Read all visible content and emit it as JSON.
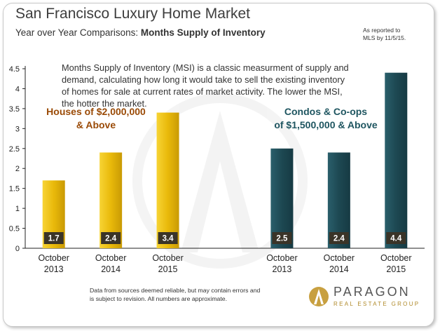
{
  "header": {
    "title": "San Francisco Luxury Home Market",
    "subtitle_prefix": "Year over Year Comparisons:",
    "subtitle_bold": "Months Supply of Inventory",
    "note_line1": "As reported to",
    "note_line2": "MLS by 11/5/15."
  },
  "description": "Months Supply of Inventory (MSI) is a classic measurment of supply and demand, calculating how long it would take to sell the existing inventory of homes for sale at current rates of market activity. The lower the MSI, the hotter the market.",
  "groups": {
    "houses_line1": "Houses of $2,000,000",
    "houses_line2": "& Above",
    "condos_line1": "Condos & Co-ops",
    "condos_line2": "of $1,500,000 & Above"
  },
  "footer": {
    "disclaimer_line1": "Data from sources deemed reliable, but may contain errors and",
    "disclaimer_line2": "is subject to revision. All numbers are approximate.",
    "logo_name": "PARAGON",
    "logo_sub": "REAL ESTATE GROUP"
  },
  "colors": {
    "houses_bar": "#eab90a",
    "condos_bar": "#1f4a55",
    "houses_label": "#9a4a06",
    "condos_label": "#1e5560",
    "value_box": "#3a3428"
  },
  "chart_data": {
    "type": "bar",
    "title": "Months Supply of Inventory",
    "ylim": [
      0,
      4.5
    ],
    "yticks": [
      "0",
      "0.5",
      "1",
      "1.5",
      "2",
      "2.5",
      "3",
      "3.5",
      "4",
      "4.5"
    ],
    "grid": false,
    "categories": [
      [
        "October",
        "2013"
      ],
      [
        "October",
        "2014"
      ],
      [
        "October",
        "2015"
      ],
      [
        "",
        ""
      ],
      [
        "October",
        "2013"
      ],
      [
        "October",
        "2014"
      ],
      [
        "October",
        "2015"
      ]
    ],
    "series": [
      {
        "name": "Houses of $2,000,000 & Above",
        "values": [
          1.7,
          2.4,
          3.4,
          null,
          null,
          null,
          null
        ],
        "labels": [
          "1.7",
          "2.4",
          "3.4",
          "",
          "",
          "",
          ""
        ]
      },
      {
        "name": "Condos & Co-ops of $1,500,000 & Above",
        "values": [
          null,
          null,
          null,
          null,
          2.5,
          2.4,
          4.4
        ],
        "labels": [
          "",
          "",
          "",
          "",
          "2.5",
          "2.4",
          "4.4"
        ]
      }
    ]
  }
}
